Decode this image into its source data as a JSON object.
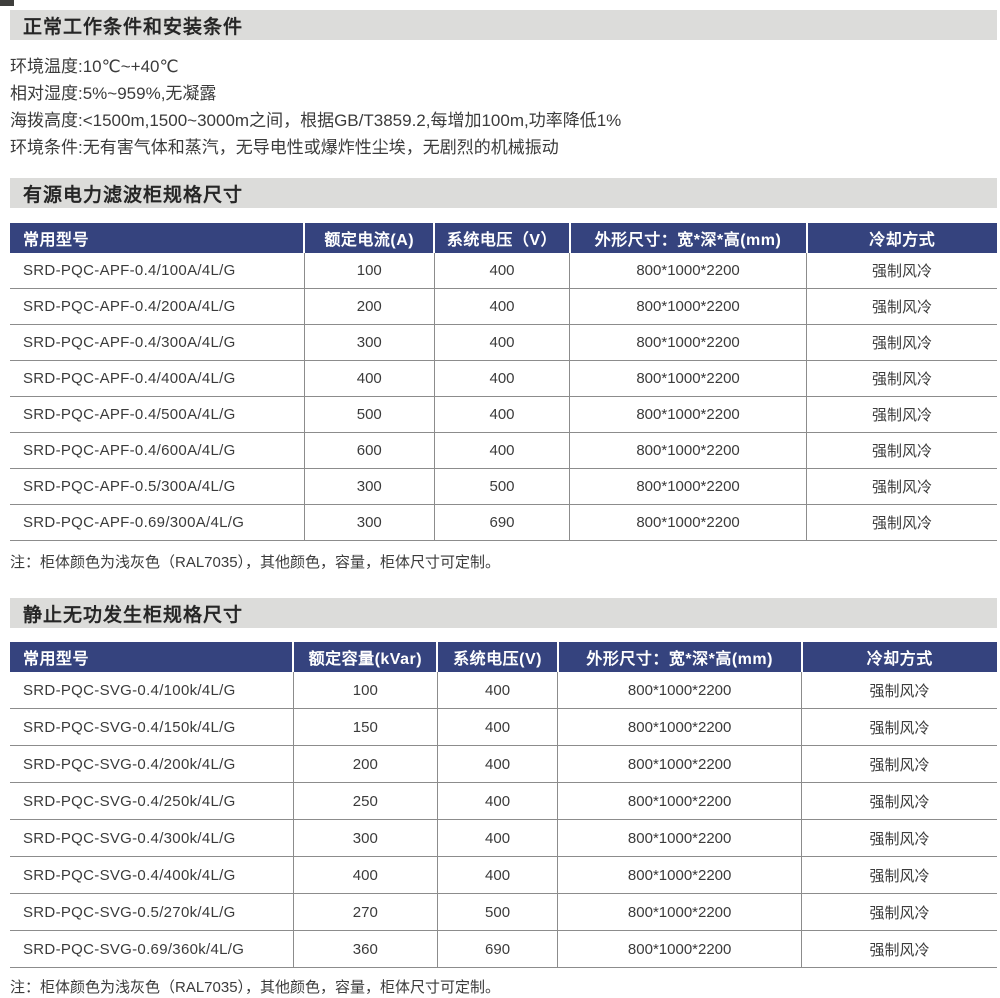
{
  "section_conditions": {
    "title": "正常工作条件和安装条件",
    "lines": [
      "环境温度:10℃~+40℃",
      "相对湿度:5%~959%,无凝露",
      "海拨高度:<1500m,1500~3000m之间，根据GB/T3859.2,每增加100m,功率降低1%",
      "环境条件:无有害气体和蒸汽，无导电性或爆炸性尘埃，无剧烈的机械振动"
    ]
  },
  "apf_section": {
    "title": "有源电力滤波柜规格尺寸",
    "headers": [
      "常用型号",
      "额定电流(A)",
      "系统电压（V）",
      "外形尺寸：宽*深*高(mm)",
      "冷却方式"
    ],
    "rows": [
      [
        "SRD-PQC-APF-0.4/100A/4L/G",
        "100",
        "400",
        "800*1000*2200",
        "强制风冷"
      ],
      [
        "SRD-PQC-APF-0.4/200A/4L/G",
        "200",
        "400",
        "800*1000*2200",
        "强制风冷"
      ],
      [
        "SRD-PQC-APF-0.4/300A/4L/G",
        "300",
        "400",
        "800*1000*2200",
        "强制风冷"
      ],
      [
        "SRD-PQC-APF-0.4/400A/4L/G",
        "400",
        "400",
        "800*1000*2200",
        "强制风冷"
      ],
      [
        "SRD-PQC-APF-0.4/500A/4L/G",
        "500",
        "400",
        "800*1000*2200",
        "强制风冷"
      ],
      [
        "SRD-PQC-APF-0.4/600A/4L/G",
        "600",
        "400",
        "800*1000*2200",
        "强制风冷"
      ],
      [
        "SRD-PQC-APF-0.5/300A/4L/G",
        "300",
        "500",
        "800*1000*2200",
        "强制风冷"
      ],
      [
        "SRD-PQC-APF-0.69/300A/4L/G",
        "300",
        "690",
        "800*1000*2200",
        "强制风冷"
      ]
    ],
    "note": "注：柜体颜色为浅灰色（RAL7035），其他颜色，容量，柜体尺寸可定制。"
  },
  "svg_section": {
    "title": "静止无功发生柜规格尺寸",
    "headers": [
      "常用型号",
      "额定容量(kVar)",
      "系统电压(V)",
      "外形尺寸：宽*深*高(mm)",
      "冷却方式"
    ],
    "rows": [
      [
        "SRD-PQC-SVG-0.4/100k/4L/G",
        "100",
        "400",
        "800*1000*2200",
        "强制风冷"
      ],
      [
        "SRD-PQC-SVG-0.4/150k/4L/G",
        "150",
        "400",
        "800*1000*2200",
        "强制风冷"
      ],
      [
        "SRD-PQC-SVG-0.4/200k/4L/G",
        "200",
        "400",
        "800*1000*2200",
        "强制风冷"
      ],
      [
        "SRD-PQC-SVG-0.4/250k/4L/G",
        "250",
        "400",
        "800*1000*2200",
        "强制风冷"
      ],
      [
        "SRD-PQC-SVG-0.4/300k/4L/G",
        "300",
        "400",
        "800*1000*2200",
        "强制风冷"
      ],
      [
        "SRD-PQC-SVG-0.4/400k/4L/G",
        "400",
        "400",
        "800*1000*2200",
        "强制风冷"
      ],
      [
        "SRD-PQC-SVG-0.5/270k/4L/G",
        "270",
        "500",
        "800*1000*2200",
        "强制风冷"
      ],
      [
        "SRD-PQC-SVG-0.69/360k/4L/G",
        "360",
        "690",
        "800*1000*2200",
        "强制风冷"
      ]
    ],
    "note": "注：柜体颜色为浅灰色（RAL7035），其他颜色，容量，柜体尺寸可定制。"
  },
  "colors": {
    "table_header_bg": "#35437e",
    "section_bar_bg": "#dcdcda",
    "table_border": "#8c8c8c",
    "body_text": "#3b3b3b"
  }
}
